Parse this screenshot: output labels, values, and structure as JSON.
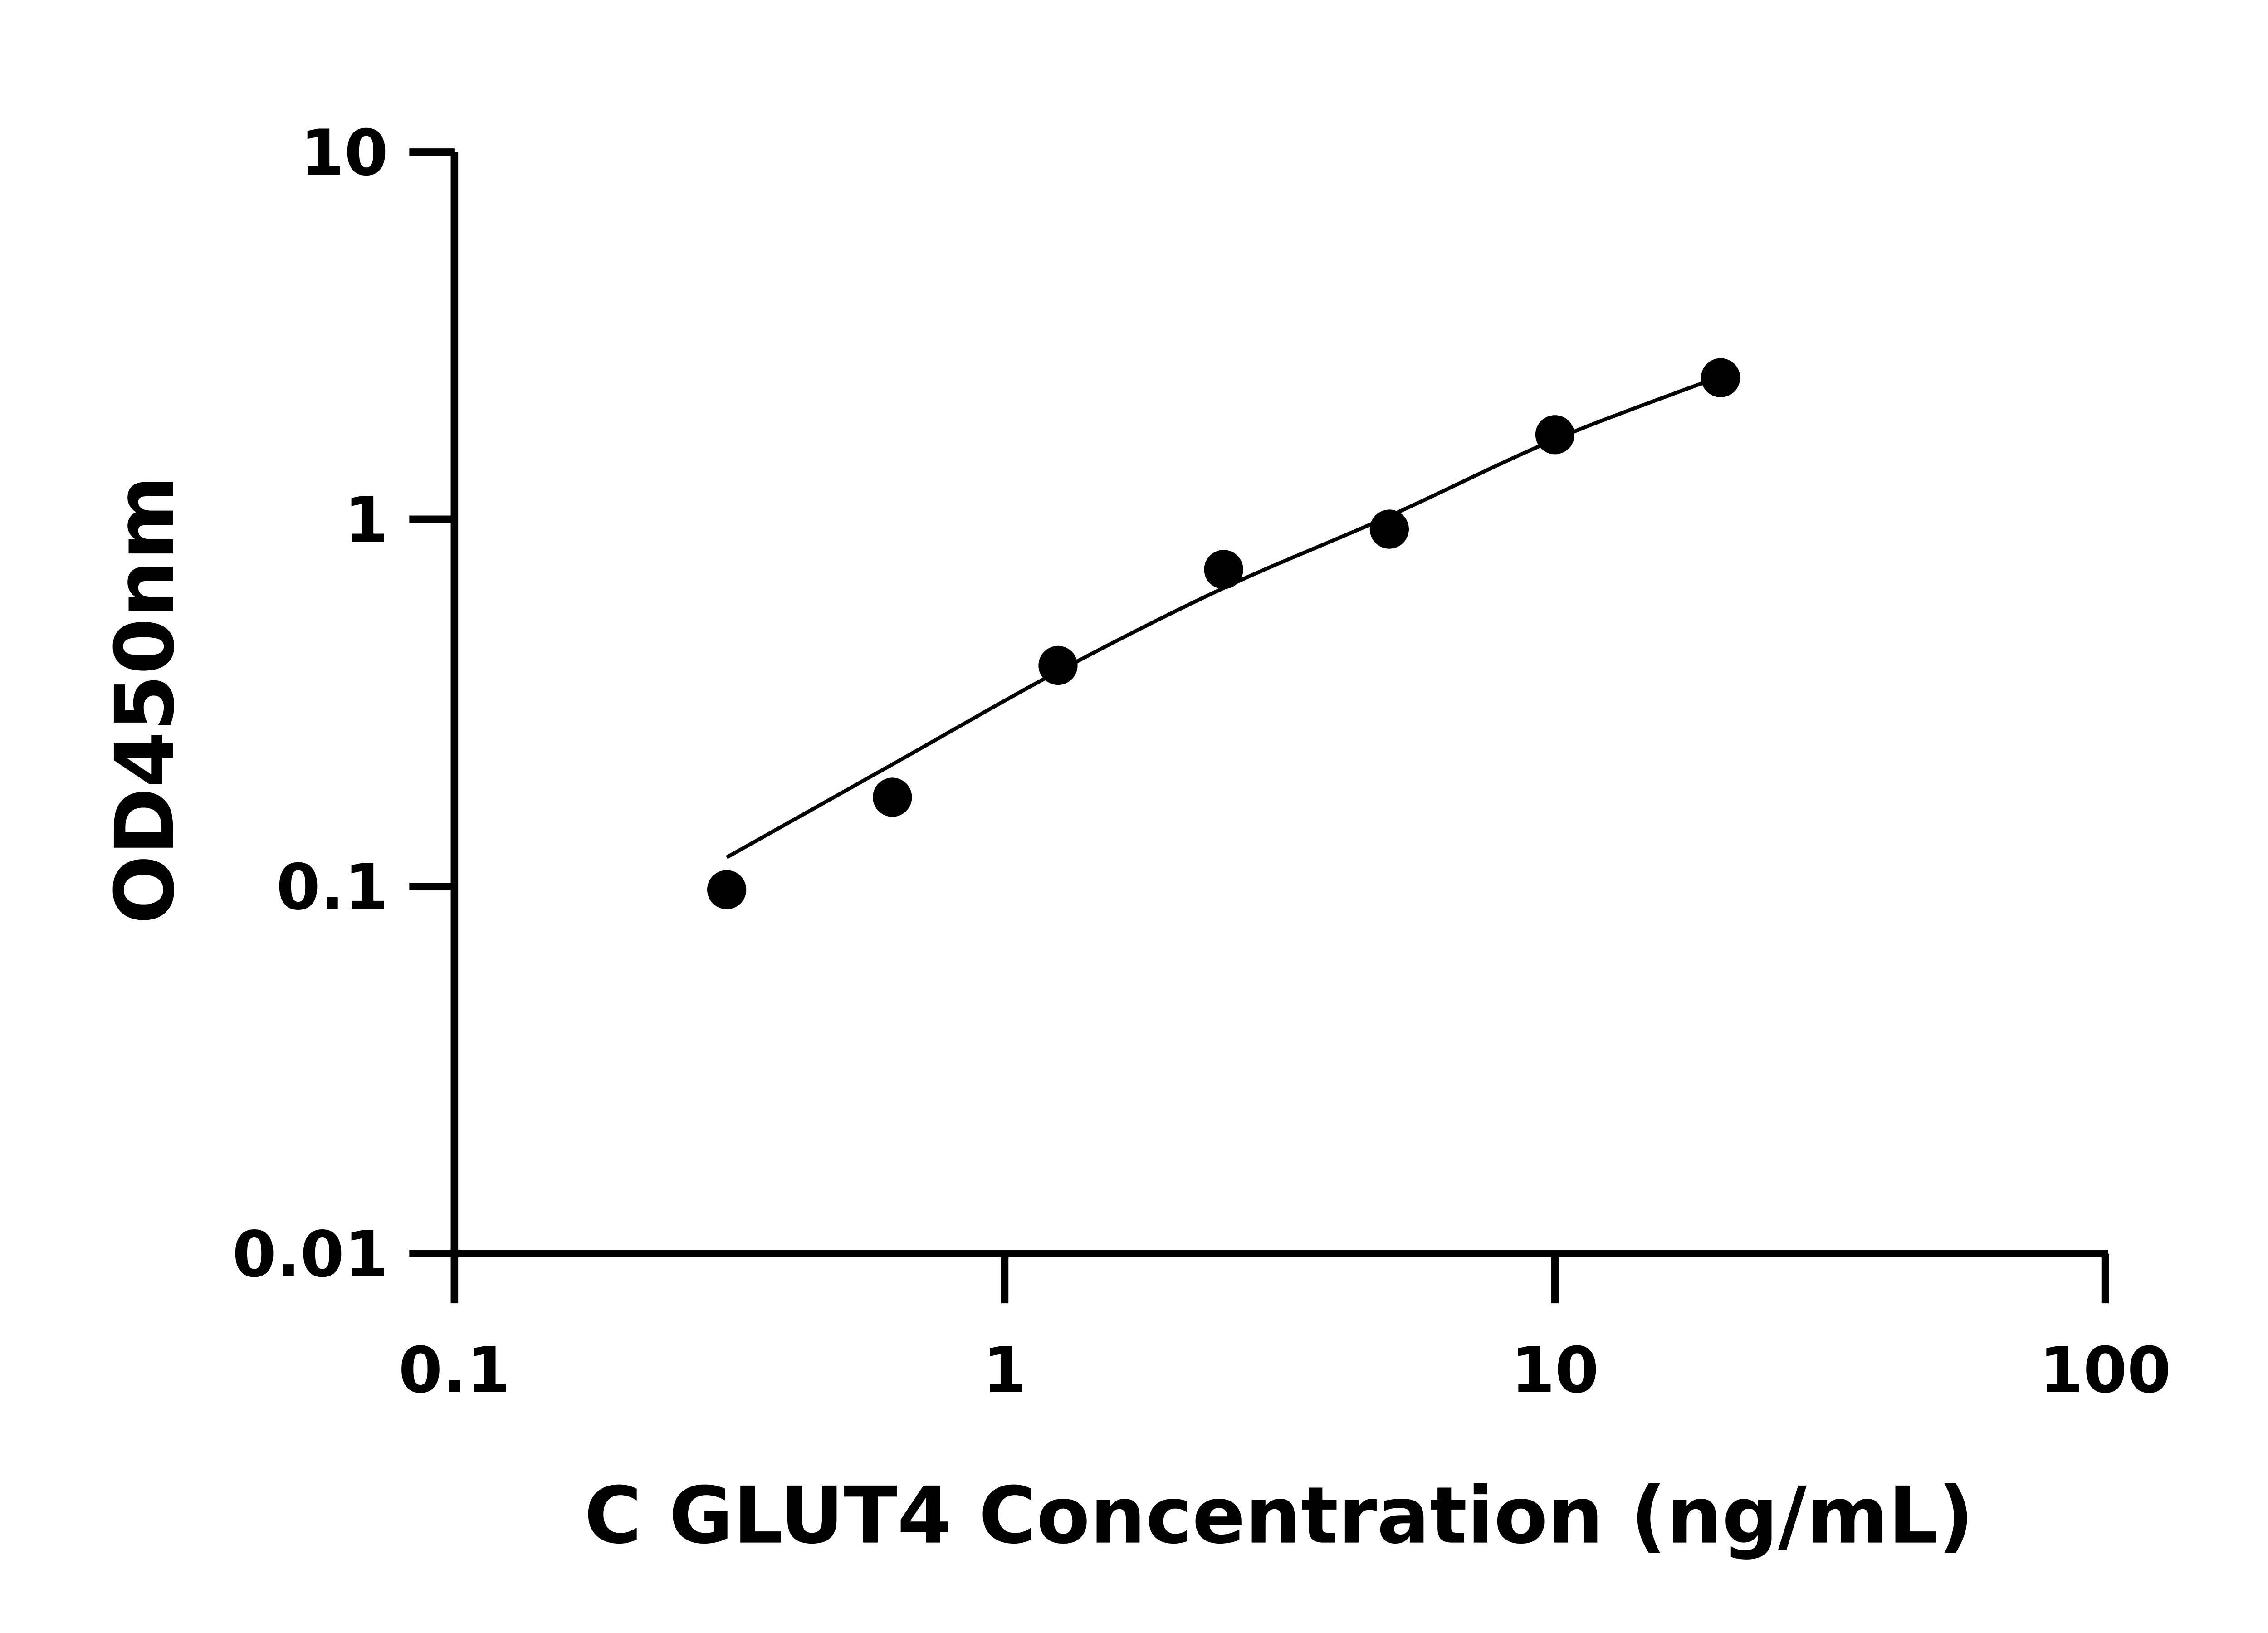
{
  "chart_data": {
    "type": "scatter",
    "title": "",
    "xlabel": "C GLUT4 Concentration (ng/mL)",
    "ylabel": "OD450nm",
    "x_scale": "log",
    "y_scale": "log",
    "xlim": [
      0.1,
      100
    ],
    "ylim": [
      0.01,
      10
    ],
    "x_ticks": [
      "0.1",
      "1",
      "10",
      "100"
    ],
    "x_tick_values": [
      0.1,
      1,
      10,
      100
    ],
    "y_ticks": [
      "0.01",
      "0.1",
      "1",
      "10"
    ],
    "y_tick_values": [
      0.01,
      0.1,
      1,
      10
    ],
    "grid": false,
    "legend": "none",
    "series": [
      {
        "x": [
          0.3125,
          0.625,
          1.25,
          2.5,
          5,
          10,
          20
        ],
        "y": [
          0.098,
          0.175,
          0.4,
          0.73,
          0.94,
          1.7,
          2.43
        ]
      }
    ],
    "fit_curve": {
      "x": [
        0.3125,
        0.625,
        1.25,
        2.5,
        5,
        10,
        20
      ],
      "y": [
        0.12,
        0.215,
        0.385,
        0.65,
        1.02,
        1.65,
        2.45
      ]
    },
    "colors": {
      "marker": "#000000",
      "line": "#000000",
      "axis": "#000000"
    }
  }
}
